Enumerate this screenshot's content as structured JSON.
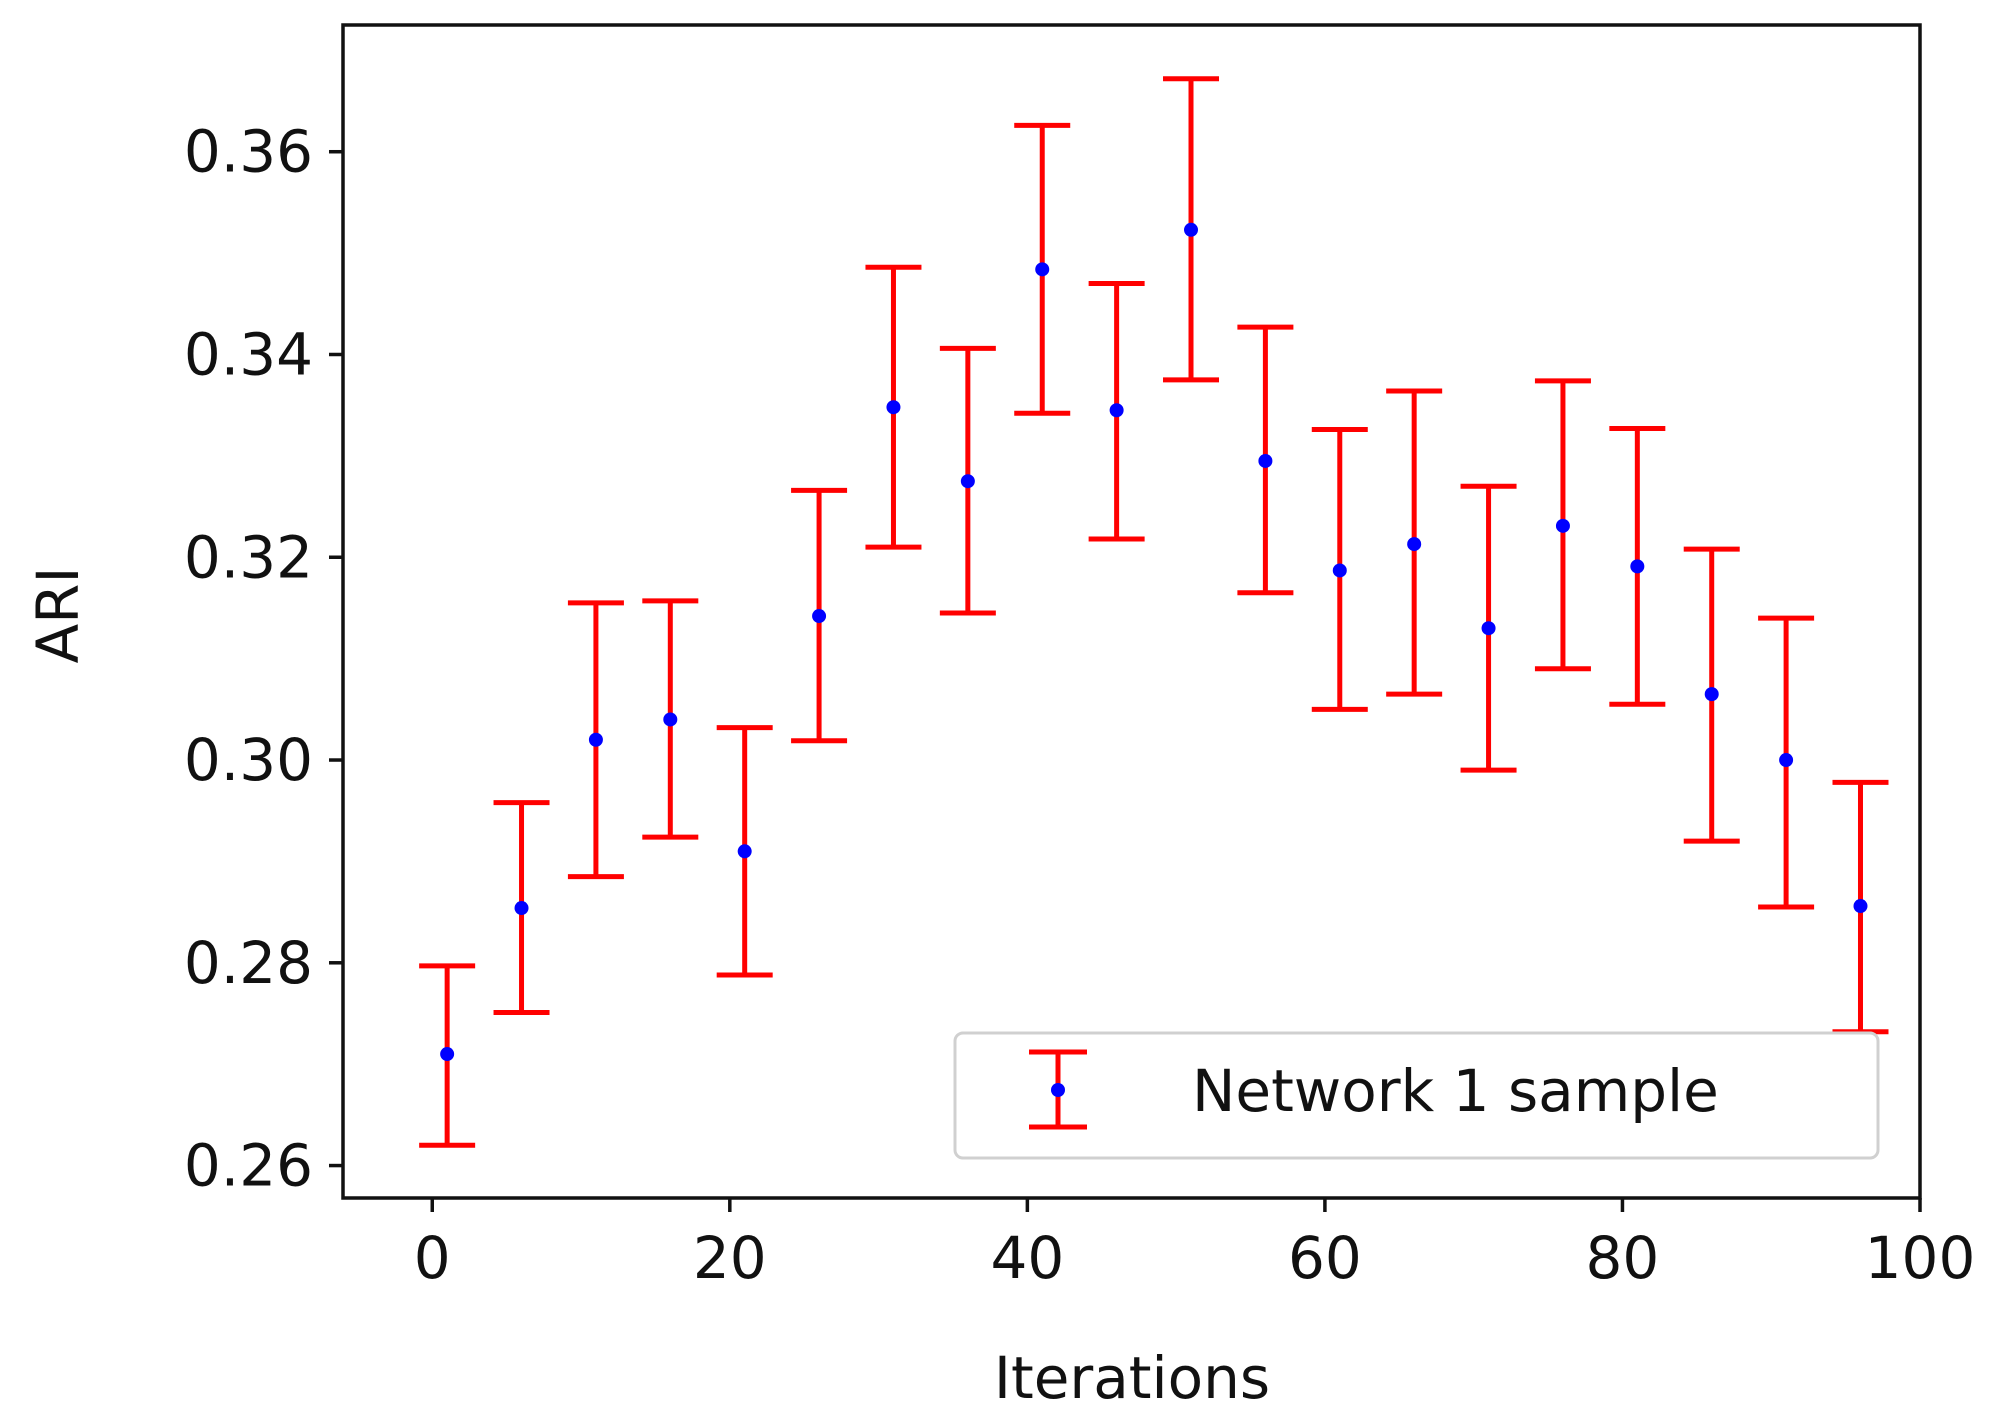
{
  "chart_data": {
    "type": "scatter",
    "title": "",
    "xlabel": "Iterations",
    "ylabel": "ARI",
    "xlim": [
      -6,
      100
    ],
    "ylim": [
      0.2568,
      0.3725
    ],
    "xticks": [
      0,
      20,
      40,
      60,
      80,
      100
    ],
    "yticks": [
      0.26,
      0.28,
      0.3,
      0.32,
      0.34,
      0.36
    ],
    "xtick_labels": [
      "0",
      "20",
      "40",
      "60",
      "80",
      "100"
    ],
    "ytick_labels": [
      "0.26",
      "0.28",
      "0.30",
      "0.32",
      "0.34",
      "0.36"
    ],
    "grid": false,
    "legend_position": "lower-right",
    "series": [
      {
        "name": "Network 1 sample",
        "marker_color": "#0000ff",
        "errorbar_color": "#ff0000",
        "x": [
          1,
          6,
          11,
          16,
          21,
          26,
          31,
          36,
          41,
          46,
          51,
          56,
          61,
          66,
          71,
          76,
          81,
          86,
          91,
          96
        ],
        "y": [
          0.271,
          0.2854,
          0.302,
          0.304,
          0.291,
          0.3142,
          0.3348,
          0.3275,
          0.3484,
          0.3345,
          0.3523,
          0.3295,
          0.3187,
          0.3213,
          0.313,
          0.3231,
          0.3191,
          0.3065,
          0.3,
          0.2856
        ],
        "lower": [
          0.262,
          0.2751,
          0.2885,
          0.2924,
          0.2788,
          0.3019,
          0.321,
          0.3145,
          0.3342,
          0.3218,
          0.3375,
          0.3165,
          0.305,
          0.3065,
          0.299,
          0.309,
          0.3055,
          0.292,
          0.2855,
          0.2732
        ],
        "upper": [
          0.2797,
          0.2958,
          0.3155,
          0.3157,
          0.3032,
          0.3266,
          0.3486,
          0.3406,
          0.3626,
          0.347,
          0.3672,
          0.3427,
          0.3326,
          0.3364,
          0.327,
          0.3374,
          0.3327,
          0.3208,
          0.314,
          0.2978
        ]
      }
    ]
  }
}
